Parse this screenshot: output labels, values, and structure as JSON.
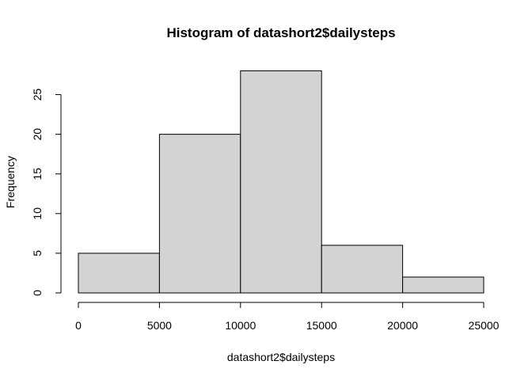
{
  "chart_data": {
    "type": "bar",
    "title": "Histogram of datashort2$dailysteps",
    "xlabel": "datashort2$dailysteps",
    "ylabel": "Frequency",
    "bins": [
      {
        "start": 0,
        "end": 5000,
        "count": 5
      },
      {
        "start": 5000,
        "end": 10000,
        "count": 20
      },
      {
        "start": 10000,
        "end": 15000,
        "count": 28
      },
      {
        "start": 15000,
        "end": 20000,
        "count": 6
      },
      {
        "start": 20000,
        "end": 25000,
        "count": 2
      }
    ],
    "xlim": [
      0,
      25000
    ],
    "ylim": [
      0,
      28
    ],
    "xticks": [
      0,
      5000,
      10000,
      15000,
      20000,
      25000
    ],
    "yticks": [
      0,
      5,
      10,
      15,
      20,
      25
    ],
    "grid": false,
    "bar_fill": "#d3d3d3",
    "bar_stroke": "#000000"
  }
}
